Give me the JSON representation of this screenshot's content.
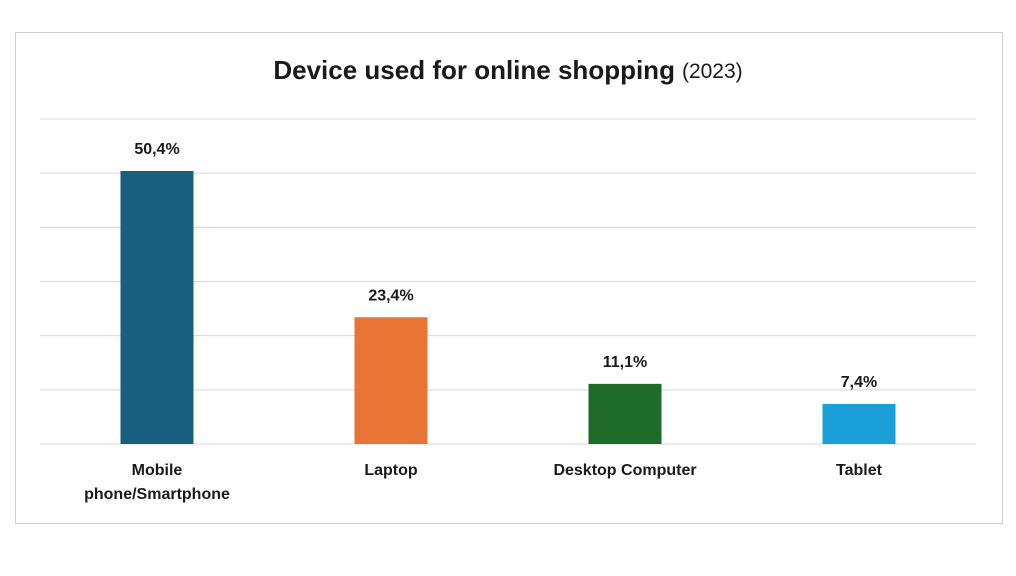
{
  "chart_data": {
    "type": "bar",
    "title": "Device used for online shopping",
    "title_note": "(2023)",
    "categories": [
      "Mobile phone/Smartphone",
      "Laptop",
      "Desktop Computer",
      "Tablet"
    ],
    "values": [
      50.4,
      23.4,
      11.1,
      7.4
    ],
    "value_labels": [
      "50,4%",
      "23,4%",
      "11,1%",
      "7,4%"
    ],
    "colors": [
      "#1a5e80",
      "#e87435",
      "#1e6b2a",
      "#1a9fd8"
    ],
    "ylim": [
      0,
      60
    ],
    "yticks": [
      0,
      10,
      20,
      30,
      40,
      50,
      60
    ],
    "grid": true
  }
}
